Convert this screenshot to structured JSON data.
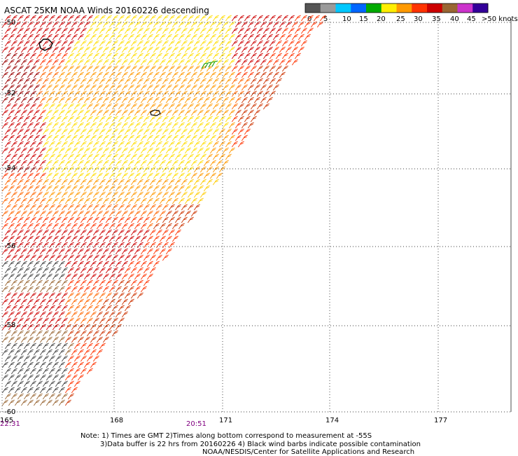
{
  "title": "ASCAT 25KM NOAA Winds 20160226 descending",
  "legend": {
    "labels": [
      "0",
      "5",
      "10",
      "15",
      "20",
      "25",
      "30",
      "35",
      "40",
      "45",
      ">50 knots"
    ],
    "colors": [
      "#555555",
      "#9a9a9a",
      "#00c8ff",
      "#0066ff",
      "#00aa00",
      "#ffee00",
      "#ff9900",
      "#ff3300",
      "#cc0000",
      "#996633",
      "#cc33cc",
      "#330099"
    ]
  },
  "lat_labels": [
    "-50",
    "-52",
    "-54",
    "-56",
    "-58",
    "-60"
  ],
  "lon_labels": [
    "165",
    "168",
    "171",
    "174",
    "177"
  ],
  "time_labels": [
    "22:31",
    "20:51"
  ],
  "notes": [
    "Note: 1) Times are GMT 2)Times along bottom correspond to measurement at -55S",
    "3)Data buffer is 22 hrs from 20160226 4) Black wind barbs indicate possible contamination",
    "NOAA/NESDIS/Center for Satellite Applications and Research"
  ]
}
